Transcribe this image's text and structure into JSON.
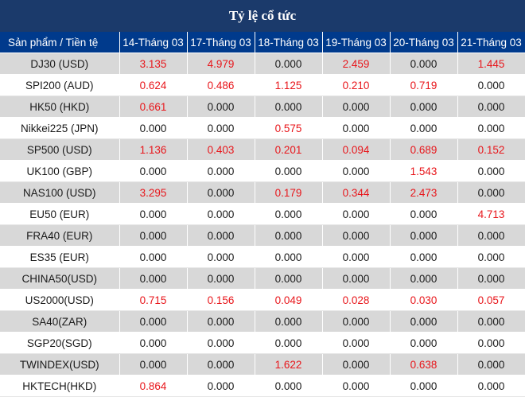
{
  "title": "Tỷ lệ cổ tức",
  "columns": [
    "Sản phẩm / Tiền tệ",
    "14-Tháng 03",
    "17-Tháng 03",
    "18-Tháng 03",
    "19-Tháng 03",
    "20-Tháng 03",
    "21-Tháng 03"
  ],
  "rows": [
    {
      "name": "DJ30 (USD)",
      "values": [
        "3.135",
        "4.979",
        "0.000",
        "2.459",
        "0.000",
        "1.445"
      ]
    },
    {
      "name": "SPI200 (AUD)",
      "values": [
        "0.624",
        "0.486",
        "1.125",
        "0.210",
        "0.719",
        "0.000"
      ]
    },
    {
      "name": "HK50 (HKD)",
      "values": [
        "0.661",
        "0.000",
        "0.000",
        "0.000",
        "0.000",
        "0.000"
      ]
    },
    {
      "name": "Nikkei225 (JPN)",
      "values": [
        "0.000",
        "0.000",
        "0.575",
        "0.000",
        "0.000",
        "0.000"
      ]
    },
    {
      "name": "SP500 (USD)",
      "values": [
        "1.136",
        "0.403",
        "0.201",
        "0.094",
        "0.689",
        "0.152"
      ]
    },
    {
      "name": "UK100 (GBP)",
      "values": [
        "0.000",
        "0.000",
        "0.000",
        "0.000",
        "1.543",
        "0.000"
      ]
    },
    {
      "name": "NAS100 (USD)",
      "values": [
        "3.295",
        "0.000",
        "0.179",
        "0.344",
        "2.473",
        "0.000"
      ]
    },
    {
      "name": "EU50 (EUR)",
      "values": [
        "0.000",
        "0.000",
        "0.000",
        "0.000",
        "0.000",
        "4.713"
      ]
    },
    {
      "name": "FRA40 (EUR)",
      "values": [
        "0.000",
        "0.000",
        "0.000",
        "0.000",
        "0.000",
        "0.000"
      ]
    },
    {
      "name": "ES35 (EUR)",
      "values": [
        "0.000",
        "0.000",
        "0.000",
        "0.000",
        "0.000",
        "0.000"
      ]
    },
    {
      "name": "CHINA50(USD)",
      "values": [
        "0.000",
        "0.000",
        "0.000",
        "0.000",
        "0.000",
        "0.000"
      ]
    },
    {
      "name": "US2000(USD)",
      "values": [
        "0.715",
        "0.156",
        "0.049",
        "0.028",
        "0.030",
        "0.057"
      ]
    },
    {
      "name": "SA40(ZAR)",
      "values": [
        "0.000",
        "0.000",
        "0.000",
        "0.000",
        "0.000",
        "0.000"
      ]
    },
    {
      "name": "SGP20(SGD)",
      "values": [
        "0.000",
        "0.000",
        "0.000",
        "0.000",
        "0.000",
        "0.000"
      ]
    },
    {
      "name": "TWINDEX(USD)",
      "values": [
        "0.000",
        "0.000",
        "1.622",
        "0.000",
        "0.638",
        "0.000"
      ]
    },
    {
      "name": "HKTECH(HKD)",
      "values": [
        "0.864",
        "0.000",
        "0.000",
        "0.000",
        "0.000",
        "0.000"
      ]
    }
  ],
  "colors": {
    "title_bg": "#1b3a6b",
    "header_bg": "#003a8c",
    "stripe_bg": "#d8d8d8",
    "positive_value": "#e8161b",
    "zero_value": "#1a1a1a"
  }
}
